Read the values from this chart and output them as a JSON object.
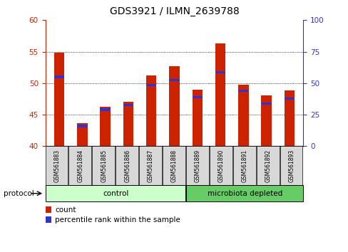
{
  "title": "GDS3921 / ILMN_2639788",
  "samples": [
    "GSM561883",
    "GSM561884",
    "GSM561885",
    "GSM561886",
    "GSM561887",
    "GSM561888",
    "GSM561889",
    "GSM561890",
    "GSM561891",
    "GSM561892",
    "GSM561893"
  ],
  "count_values": [
    54.8,
    43.7,
    46.3,
    47.0,
    51.2,
    52.7,
    49.0,
    56.3,
    49.7,
    48.1,
    48.9
  ],
  "pct_on_left_scale": [
    51.0,
    43.2,
    45.8,
    46.5,
    49.7,
    50.5,
    47.8,
    51.7,
    48.8,
    46.8,
    47.5
  ],
  "groups": {
    "control_count": 6,
    "microbiota_count": 5
  },
  "group_colors": {
    "control": "#ccffcc",
    "microbiota": "#66cc66"
  },
  "bar_color": "#cc2200",
  "blue_color": "#3333cc",
  "ylim_left": [
    40,
    60
  ],
  "ylim_right": [
    0,
    100
  ],
  "yticks_left": [
    40,
    45,
    50,
    55,
    60
  ],
  "yticks_right": [
    0,
    25,
    50,
    75,
    100
  ],
  "left_axis_color": "#cc2200",
  "right_axis_color": "#3333cc",
  "bar_width": 0.45,
  "legend_count_label": "count",
  "legend_pct_label": "percentile rank within the sample",
  "protocol_label": "protocol",
  "tick_cell_color": "#d8d8d8"
}
